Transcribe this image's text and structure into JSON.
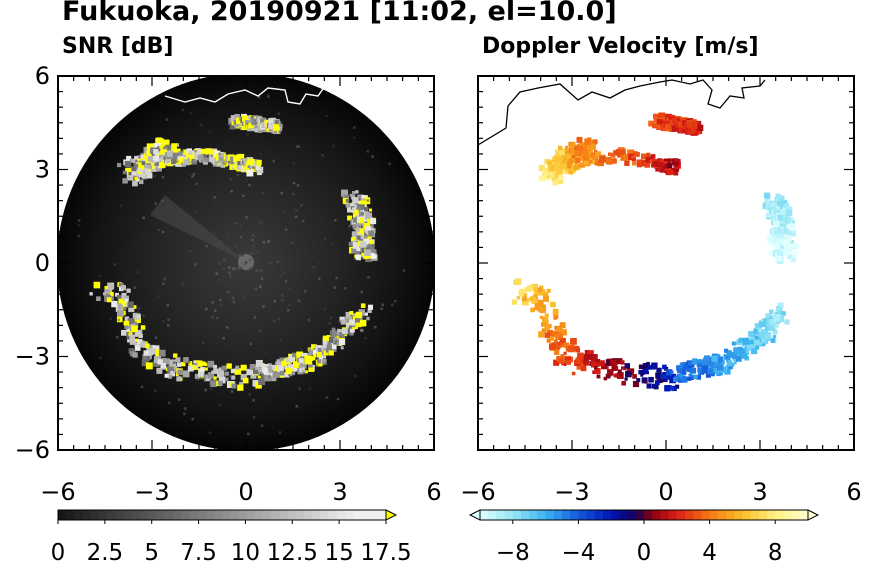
{
  "title": "Fukuoka, 20190921 [11:02, el=10.0]",
  "colors": {
    "snr_highlight": "#ffff00",
    "disk_background": "#000000",
    "coastline": "#000000",
    "frame": "#000000"
  },
  "chart_data": [
    {
      "type": "heatmap",
      "subtitle": "SNR [dB]",
      "x_ticks": [
        "−6",
        "−3",
        "0",
        "3",
        "6"
      ],
      "y_ticks": [
        "6",
        "3",
        "0",
        "−3",
        "−6"
      ],
      "xlim": [
        -6,
        6
      ],
      "ylim": [
        -6,
        6
      ],
      "colorbar": {
        "ticks": [
          "0",
          "2.5",
          "5",
          "7.5",
          "10",
          "12.5",
          "15",
          "17.5"
        ],
        "range": [
          0,
          17.5
        ],
        "extend": "max"
      }
    },
    {
      "type": "heatmap",
      "subtitle": "Doppler Velocity [m/s]",
      "x_ticks": [
        "−6",
        "−3",
        "0",
        "3",
        "6"
      ],
      "y_ticks": [],
      "xlim": [
        -6,
        6
      ],
      "ylim": [
        -6,
        6
      ],
      "colorbar": {
        "ticks": [
          "−8",
          "−4",
          "0",
          "4",
          "8"
        ],
        "range": [
          -10,
          10
        ],
        "extend": "both"
      }
    }
  ]
}
